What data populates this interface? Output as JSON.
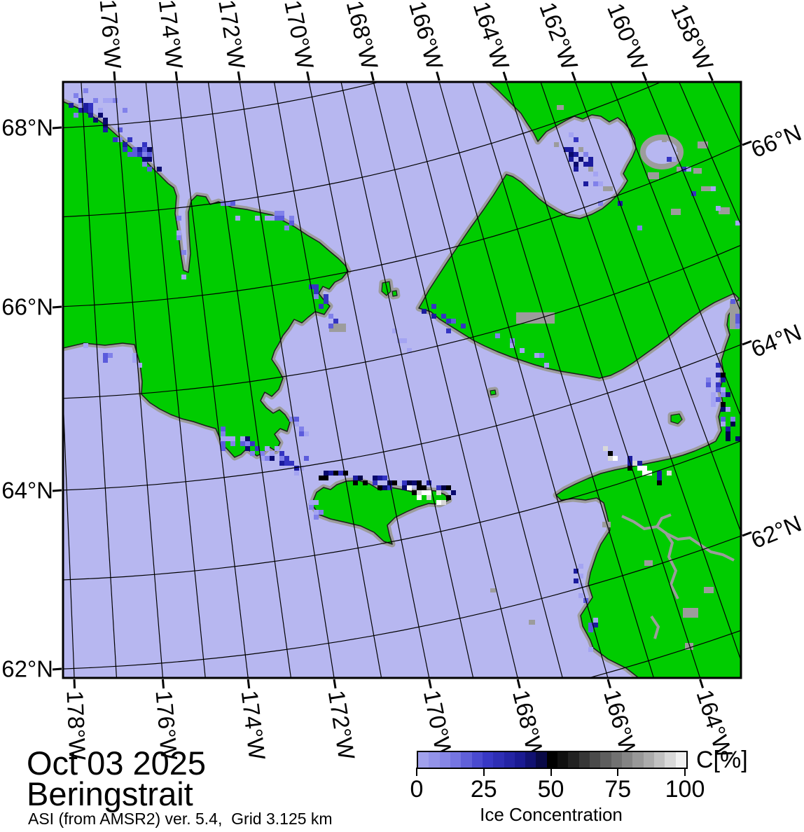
{
  "figure": {
    "date": "Oct 03 2025",
    "region": "Beringstrait",
    "source": "ASI (from AMSR2) ver. 5.4,  Grid 3.125 km"
  },
  "axes": {
    "top": [
      "176°W",
      "174°W",
      "172°W",
      "170°W",
      "168°W",
      "166°W",
      "164°W",
      "162°W",
      "160°W",
      "158°W"
    ],
    "bottom": [
      "178°W",
      "176°W",
      "174°W",
      "172°W",
      "170°W",
      "168°W",
      "166°W",
      "164°W"
    ],
    "left": [
      "68°N",
      "66°N",
      "64°N",
      "62°N"
    ],
    "right": [
      "66°N",
      "64°N",
      "62°N"
    ]
  },
  "colorbar": {
    "unit": "C[%]",
    "ticks": [
      "0",
      "25",
      "50",
      "75",
      "100"
    ],
    "caption": "Ice Concentration",
    "gradient": [
      {
        "t": 0.0,
        "c": "#a8a8ee"
      },
      {
        "t": 0.125,
        "c": "#7d7de4"
      },
      {
        "t": 0.25,
        "c": "#3a3ac8"
      },
      {
        "t": 0.375,
        "c": "#1b1b96"
      },
      {
        "t": 0.45,
        "c": "#0b0b58"
      },
      {
        "t": 0.5,
        "c": "#000000"
      },
      {
        "t": 0.56,
        "c": "#181818"
      },
      {
        "t": 0.625,
        "c": "#3a3a3a"
      },
      {
        "t": 0.75,
        "c": "#767676"
      },
      {
        "t": 0.875,
        "c": "#b2b2b2"
      },
      {
        "t": 1.0,
        "c": "#fdfdfd"
      }
    ]
  },
  "colors": {
    "ocean": "#b7b7f0",
    "land": "#00cc00",
    "coast_gray": "#9c9c9c",
    "outline": "#1c1c1c",
    "grid": "#000000",
    "frame": "#000000",
    "ice_palette": [
      "#a4a4f2",
      "#8181ea",
      "#5b5bdc",
      "#3434c2",
      "#1b1b9e",
      "#0a0a6e",
      "#020246",
      "#000000",
      "#ffffff",
      "#d8d8d8",
      "#9c9c9c"
    ]
  }
}
